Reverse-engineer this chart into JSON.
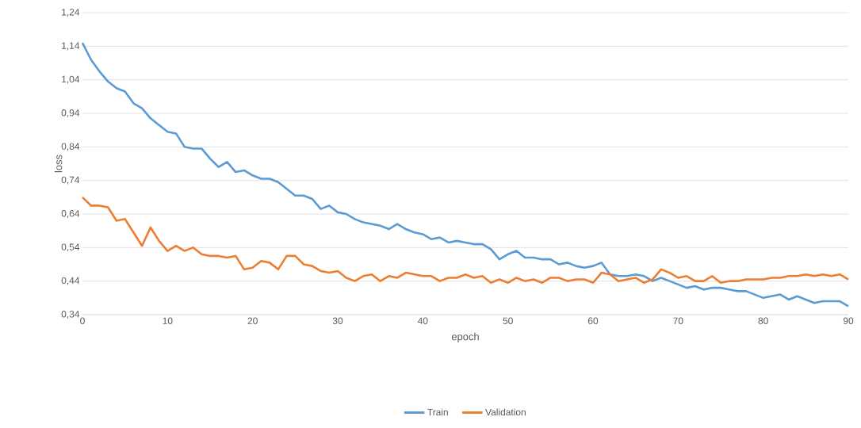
{
  "chart_data": {
    "type": "line",
    "xlabel": "epoch",
    "ylabel": "loss",
    "x": [
      0,
      1,
      2,
      3,
      4,
      5,
      6,
      7,
      8,
      9,
      10,
      11,
      12,
      13,
      14,
      15,
      16,
      17,
      18,
      19,
      20,
      21,
      22,
      23,
      24,
      25,
      26,
      27,
      28,
      29,
      30,
      31,
      32,
      33,
      34,
      35,
      36,
      37,
      38,
      39,
      40,
      41,
      42,
      43,
      44,
      45,
      46,
      47,
      48,
      49,
      50,
      51,
      52,
      53,
      54,
      55,
      56,
      57,
      58,
      59,
      60,
      61,
      62,
      63,
      64,
      65,
      66,
      67,
      68,
      69,
      70,
      71,
      72,
      73,
      74,
      75,
      76,
      77,
      78,
      79,
      80,
      81,
      82,
      83,
      84,
      85,
      86,
      87,
      88,
      89,
      90
    ],
    "series": [
      {
        "name": "Train",
        "color": "#5b9bd5",
        "values": [
          1.15,
          1.1,
          1.065,
          1.035,
          1.015,
          1.005,
          0.97,
          0.955,
          0.925,
          0.905,
          0.885,
          0.88,
          0.84,
          0.835,
          0.835,
          0.805,
          0.78,
          0.795,
          0.765,
          0.77,
          0.755,
          0.745,
          0.745,
          0.735,
          0.715,
          0.695,
          0.695,
          0.685,
          0.655,
          0.665,
          0.645,
          0.64,
          0.625,
          0.615,
          0.61,
          0.605,
          0.595,
          0.61,
          0.595,
          0.585,
          0.58,
          0.565,
          0.57,
          0.555,
          0.56,
          0.555,
          0.55,
          0.55,
          0.535,
          0.505,
          0.52,
          0.53,
          0.51,
          0.51,
          0.505,
          0.505,
          0.49,
          0.495,
          0.485,
          0.48,
          0.485,
          0.495,
          0.46,
          0.455,
          0.455,
          0.46,
          0.455,
          0.44,
          0.45,
          0.44,
          0.43,
          0.42,
          0.425,
          0.415,
          0.42,
          0.42,
          0.415,
          0.41,
          0.41,
          0.4,
          0.39,
          0.395,
          0.4,
          0.385,
          0.395,
          0.385,
          0.375,
          0.38,
          0.38,
          0.38,
          0.365
        ]
      },
      {
        "name": "Validation",
        "color": "#ed7d31",
        "values": [
          0.69,
          0.665,
          0.665,
          0.66,
          0.62,
          0.625,
          0.585,
          0.545,
          0.6,
          0.56,
          0.53,
          0.545,
          0.53,
          0.54,
          0.52,
          0.515,
          0.515,
          0.51,
          0.515,
          0.475,
          0.48,
          0.5,
          0.495,
          0.475,
          0.515,
          0.515,
          0.49,
          0.485,
          0.47,
          0.465,
          0.47,
          0.45,
          0.44,
          0.455,
          0.46,
          0.44,
          0.455,
          0.45,
          0.465,
          0.46,
          0.455,
          0.455,
          0.44,
          0.45,
          0.45,
          0.46,
          0.45,
          0.455,
          0.435,
          0.445,
          0.435,
          0.45,
          0.44,
          0.445,
          0.435,
          0.45,
          0.45,
          0.44,
          0.445,
          0.445,
          0.435,
          0.465,
          0.46,
          0.44,
          0.445,
          0.45,
          0.435,
          0.445,
          0.475,
          0.465,
          0.45,
          0.455,
          0.44,
          0.44,
          0.455,
          0.435,
          0.44,
          0.44,
          0.445,
          0.445,
          0.445,
          0.45,
          0.45,
          0.455,
          0.455,
          0.46,
          0.455,
          0.46,
          0.455,
          0.46,
          0.445
        ]
      }
    ],
    "xlim": [
      0,
      90
    ],
    "xticks": [
      0,
      10,
      20,
      30,
      40,
      50,
      60,
      70,
      80,
      90
    ],
    "ylim": [
      0.34,
      1.24
    ],
    "yticks": [
      {
        "value": 0.34,
        "label": "0,34"
      },
      {
        "value": 0.44,
        "label": "0,44"
      },
      {
        "value": 0.54,
        "label": "0,54"
      },
      {
        "value": 0.64,
        "label": "0,64"
      },
      {
        "value": 0.74,
        "label": "0,74"
      },
      {
        "value": 0.84,
        "label": "0,84"
      },
      {
        "value": 0.94,
        "label": "0,94"
      },
      {
        "value": 1.04,
        "label": "1,04"
      },
      {
        "value": 1.14,
        "label": "1,14"
      },
      {
        "value": 1.24,
        "label": "1,24"
      }
    ],
    "grid": "y",
    "legend": "bottom",
    "marker": "none",
    "line_style": "solid"
  }
}
